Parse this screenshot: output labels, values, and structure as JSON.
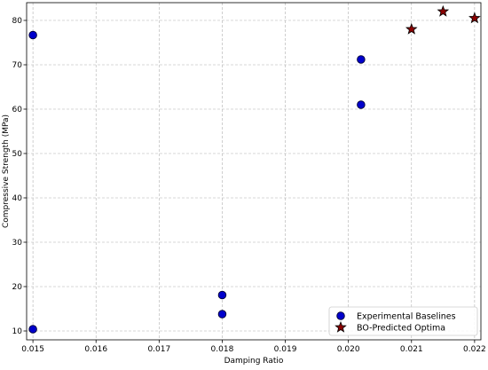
{
  "chart_data": {
    "type": "scatter",
    "title": "",
    "xlabel": "Damping Ratio",
    "ylabel": "Compressive Strength (MPa)",
    "xlim": [
      0.0149,
      0.0221
    ],
    "ylim": [
      8,
      84
    ],
    "xticks": [
      0.015,
      0.016,
      0.017,
      0.018,
      0.019,
      0.02,
      0.021,
      0.022
    ],
    "xtick_labels": [
      "0.015",
      "0.016",
      "0.017",
      "0.018",
      "0.019",
      "0.020",
      "0.021",
      "0.022"
    ],
    "yticks": [
      10,
      20,
      30,
      40,
      50,
      60,
      70,
      80
    ],
    "ytick_labels": [
      "10",
      "20",
      "30",
      "40",
      "50",
      "60",
      "70",
      "80"
    ],
    "grid": true,
    "legend_position": "bottom-right",
    "series": [
      {
        "name": "Experimental Baselines",
        "marker": "circle",
        "color": "#0000cc",
        "edge_color": "#000033",
        "points": [
          {
            "x": 0.015,
            "y": 76.7
          },
          {
            "x": 0.015,
            "y": 10.4
          },
          {
            "x": 0.018,
            "y": 18.1
          },
          {
            "x": 0.018,
            "y": 13.8
          },
          {
            "x": 0.0202,
            "y": 71.2
          },
          {
            "x": 0.0202,
            "y": 61.0
          }
        ]
      },
      {
        "name": "BO-Predicted Optima",
        "marker": "star",
        "color": "#8b0000",
        "edge_color": "#000000",
        "points": [
          {
            "x": 0.021,
            "y": 78.0
          },
          {
            "x": 0.0215,
            "y": 82.0
          },
          {
            "x": 0.022,
            "y": 80.5
          }
        ]
      }
    ]
  }
}
